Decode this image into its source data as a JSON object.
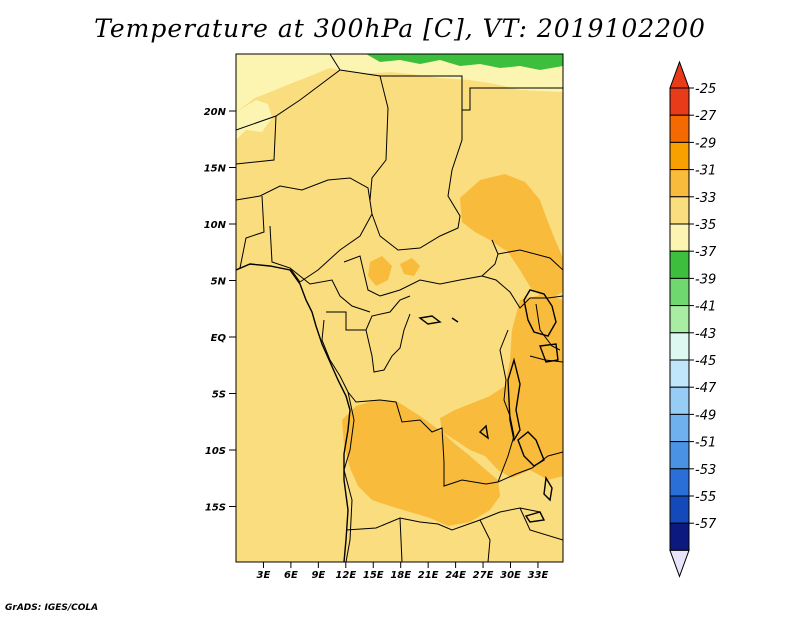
{
  "title": "Temperature at 300hPa [C], VT: 2019102200",
  "credit": "GrADS: IGES/COLA",
  "map": {
    "lat_labels": [
      "20N",
      "15N",
      "10N",
      "5N",
      "EQ",
      "5S",
      "10S",
      "15S"
    ],
    "lon_labels": [
      "3E",
      "6E",
      "9E",
      "12E",
      "15E",
      "18E",
      "21E",
      "24E",
      "27E",
      "30E",
      "33E"
    ],
    "lat_values": [
      20,
      15,
      10,
      5,
      0,
      -5,
      -10,
      -15
    ],
    "lon_values": [
      3,
      6,
      9,
      12,
      15,
      18,
      21,
      24,
      27,
      30,
      33
    ],
    "background_fill": "#f9dd7e"
  },
  "colorbar": {
    "labels": [
      "-25",
      "-27",
      "-29",
      "-31",
      "-33",
      "-35",
      "-37",
      "-39",
      "-41",
      "-43",
      "-45",
      "-47",
      "-49",
      "-51",
      "-53",
      "-55",
      "-57"
    ],
    "colors": [
      "#e83b1a",
      "#f56a00",
      "#f8a000",
      "#f9bb3b",
      "#f9dd7e",
      "#fcf5b2",
      "#3dbf3d",
      "#6fd86f",
      "#a9eca4",
      "#dcf8f0",
      "#bfe6fa",
      "#97cdf4",
      "#6fb0ee",
      "#4a93e4",
      "#2a6fd8",
      "#1349b8",
      "#0c1a80"
    ],
    "top_triangle_color": "#e83b1a",
    "bottom_triangle_color": "#e8e4fb"
  }
}
